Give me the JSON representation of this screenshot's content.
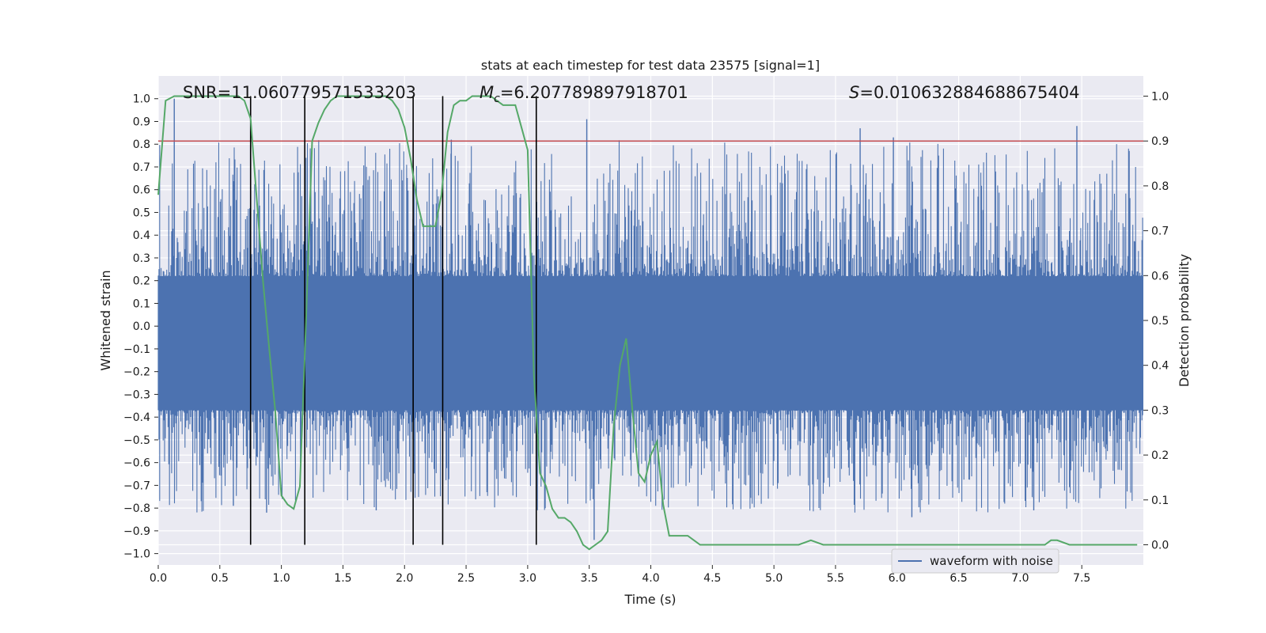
{
  "chart_data": {
    "type": "line",
    "title": "stats at each timestep for test data 23575 [signal=1]",
    "xlabel": "Time (s)",
    "ylabel": "Whitened strain",
    "y2label": "Detection probability",
    "xlim": [
      0.0,
      8.0
    ],
    "ylim": [
      -1.05,
      1.1
    ],
    "y2lim": [
      -0.045,
      1.045
    ],
    "xticks": [
      "0.0",
      "0.5",
      "1.0",
      "1.5",
      "2.0",
      "2.5",
      "3.0",
      "3.5",
      "4.0",
      "4.5",
      "5.0",
      "5.5",
      "6.0",
      "6.5",
      "7.0",
      "7.5"
    ],
    "yticks": [
      "1.0",
      "0.9",
      "0.8",
      "0.7",
      "0.6",
      "0.5",
      "0.4",
      "0.3",
      "0.2",
      "0.1",
      "0.0",
      "−0.1",
      "−0.2",
      "−0.3",
      "−0.4",
      "−0.5",
      "−0.6",
      "−0.7",
      "−0.8",
      "−0.9",
      "−1.0"
    ],
    "y2ticks": [
      "0.0",
      "0.1",
      "0.2",
      "0.3",
      "0.4",
      "0.5",
      "0.6",
      "0.7",
      "0.8",
      "0.9",
      "1.0"
    ],
    "annotations": {
      "snr": "SNR=11.060779571533203",
      "mc_value": "=6.207789897918701",
      "s_value": "=0.010632884688675404"
    },
    "threshold": {
      "value": 0.9,
      "axis": "right",
      "color": "#c44e52"
    },
    "vertical_markers": [
      0.75,
      1.19,
      2.07,
      2.31,
      3.07
    ],
    "legend": {
      "label": "waveform with noise",
      "location": "lower-right"
    },
    "series": [
      {
        "name": "waveform with noise",
        "kind": "noise",
        "color": "#4c72b0",
        "core_range": [
          -0.37,
          0.22
        ],
        "peak_max": 1.0,
        "peak_min": -0.94,
        "notable_peaks": [
          {
            "t": 0.13,
            "v": 1.0
          },
          {
            "t": 3.48,
            "v": 0.91
          },
          {
            "t": 5.7,
            "v": 0.87
          },
          {
            "t": 5.97,
            "v": 0.83
          },
          {
            "t": 7.46,
            "v": 0.88
          },
          {
            "t": 2.38,
            "v": 0.82
          },
          {
            "t": 3.54,
            "v": -0.94
          },
          {
            "t": 0.88,
            "v": -0.82
          },
          {
            "t": 1.77,
            "v": -0.81
          },
          {
            "t": 6.12,
            "v": -0.84
          },
          {
            "t": 7.11,
            "v": -0.81
          },
          {
            "t": 0.61,
            "v": -0.79
          }
        ]
      },
      {
        "name": "Detection probability",
        "kind": "line",
        "axis": "right",
        "color": "#55a868",
        "x": [
          0.0,
          0.06,
          0.13,
          0.2,
          0.3,
          0.4,
          0.5,
          0.58,
          0.65,
          0.7,
          0.75,
          0.8,
          0.85,
          0.9,
          0.95,
          1.0,
          1.05,
          1.1,
          1.15,
          1.2,
          1.25,
          1.3,
          1.35,
          1.4,
          1.45,
          1.5,
          1.55,
          1.6,
          1.7,
          1.8,
          1.85,
          1.9,
          1.95,
          2.0,
          2.05,
          2.1,
          2.15,
          2.2,
          2.25,
          2.3,
          2.35,
          2.4,
          2.45,
          2.5,
          2.55,
          2.6,
          2.7,
          2.8,
          2.85,
          2.9,
          2.95,
          3.0,
          3.05,
          3.1,
          3.15,
          3.2,
          3.25,
          3.3,
          3.35,
          3.4,
          3.45,
          3.5,
          3.55,
          3.6,
          3.65,
          3.7,
          3.75,
          3.8,
          3.85,
          3.9,
          3.95,
          4.0,
          4.05,
          4.1,
          4.15,
          4.2,
          4.25,
          4.3,
          4.35,
          4.4,
          4.5,
          4.6,
          4.7,
          4.8,
          5.0,
          5.1,
          5.2,
          5.3,
          5.4,
          5.5,
          5.6,
          5.7,
          5.8,
          5.9,
          6.0,
          6.1,
          6.2,
          6.3,
          6.4,
          6.5,
          6.6,
          6.7,
          6.8,
          6.9,
          7.0,
          7.1,
          7.2,
          7.25,
          7.3,
          7.4,
          7.5,
          7.6,
          7.7,
          7.8,
          7.95
        ],
        "values": [
          0.78,
          0.99,
          1.0,
          1.0,
          1.0,
          1.0,
          1.0,
          1.0,
          1.0,
          0.99,
          0.95,
          0.77,
          0.59,
          0.44,
          0.3,
          0.11,
          0.09,
          0.08,
          0.13,
          0.5,
          0.9,
          0.94,
          0.97,
          0.99,
          1.0,
          1.0,
          1.0,
          1.0,
          1.0,
          1.0,
          1.0,
          0.99,
          0.97,
          0.93,
          0.86,
          0.77,
          0.71,
          0.71,
          0.71,
          0.78,
          0.92,
          0.98,
          0.99,
          0.99,
          1.0,
          1.0,
          1.0,
          0.98,
          0.98,
          0.98,
          0.93,
          0.88,
          0.38,
          0.16,
          0.13,
          0.08,
          0.06,
          0.06,
          0.05,
          0.03,
          0.0,
          -0.01,
          0.0,
          0.01,
          0.03,
          0.27,
          0.4,
          0.46,
          0.3,
          0.16,
          0.14,
          0.2,
          0.23,
          0.09,
          0.02,
          0.02,
          0.02,
          0.02,
          0.01,
          0.0,
          0.0,
          0.0,
          0.0,
          0.0,
          0.0,
          0.0,
          0.0,
          0.01,
          0.0,
          0.0,
          0.0,
          0.0,
          0.0,
          0.0,
          0.0,
          0.0,
          0.0,
          0.0,
          0.0,
          0.0,
          0.0,
          0.0,
          0.0,
          0.0,
          0.0,
          0.0,
          0.0,
          0.01,
          0.01,
          0.0,
          0.0,
          0.0,
          0.0,
          0.0,
          0.0
        ]
      }
    ]
  }
}
